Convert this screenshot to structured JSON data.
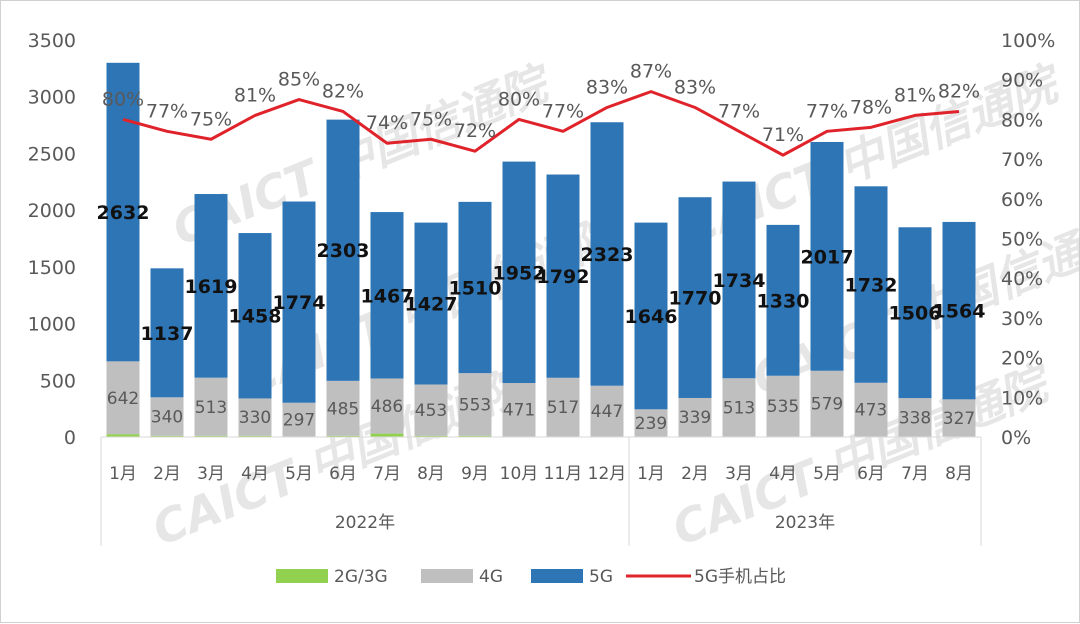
{
  "chart_data": {
    "type": "bar",
    "stacked": true,
    "categories": [
      "1月",
      "2月",
      "3月",
      "4月",
      "5月",
      "6月",
      "7月",
      "8月",
      "9月",
      "10月",
      "11月",
      "12月",
      "1月",
      "2月",
      "3月",
      "4月",
      "5月",
      "6月",
      "7月",
      "8月"
    ],
    "groups": [
      {
        "label": "2022年",
        "start": 0,
        "end": 11
      },
      {
        "label": "2023年",
        "start": 12,
        "end": 19
      }
    ],
    "series": [
      {
        "name": "2G/3G",
        "color": "#92d050",
        "values": [
          25,
          10,
          10,
          10,
          5,
          10,
          30,
          10,
          10,
          5,
          5,
          5,
          5,
          5,
          5,
          5,
          5,
          5,
          5,
          5
        ]
      },
      {
        "name": "4G",
        "color": "#bfbfbf",
        "values": [
          642,
          340,
          513,
          330,
          297,
          485,
          486,
          453,
          553,
          471,
          517,
          447,
          239,
          339,
          513,
          535,
          579,
          473,
          338,
          327
        ]
      },
      {
        "name": "5G",
        "color": "#2e75b6",
        "values": [
          2632,
          1137,
          1619,
          1458,
          1774,
          2303,
          1467,
          1427,
          1510,
          1952,
          1792,
          2323,
          1646,
          1770,
          1734,
          1330,
          2017,
          1732,
          1506,
          1564
        ]
      }
    ],
    "line_series": {
      "name": "5G手机占比",
      "color": "#e0232b",
      "values": [
        80,
        77,
        75,
        81,
        85,
        82,
        74,
        75,
        72,
        80,
        77,
        83,
        87,
        83,
        77,
        71,
        77,
        78,
        81,
        82
      ],
      "labels": [
        "80%",
        "77%",
        "75%",
        "81%",
        "85%",
        "82%",
        "74%",
        "75%",
        "72%",
        "80%",
        "77%",
        "83%",
        "87%",
        "83%",
        "77%",
        "71%",
        "77%",
        "78%",
        "81%",
        "82%"
      ]
    },
    "ylim": [
      0,
      3500
    ],
    "y_ticks": [
      "0",
      "500",
      "1000",
      "1500",
      "2000",
      "2500",
      "3000",
      "3500"
    ],
    "y2lim": [
      0,
      100
    ],
    "y2_ticks": [
      "0%",
      "10%",
      "20%",
      "30%",
      "40%",
      "50%",
      "60%",
      "70%",
      "80%",
      "90%",
      "100%"
    ],
    "grid": false,
    "legend_position": "bottom",
    "watermark": "CAICT 中国信通院"
  }
}
